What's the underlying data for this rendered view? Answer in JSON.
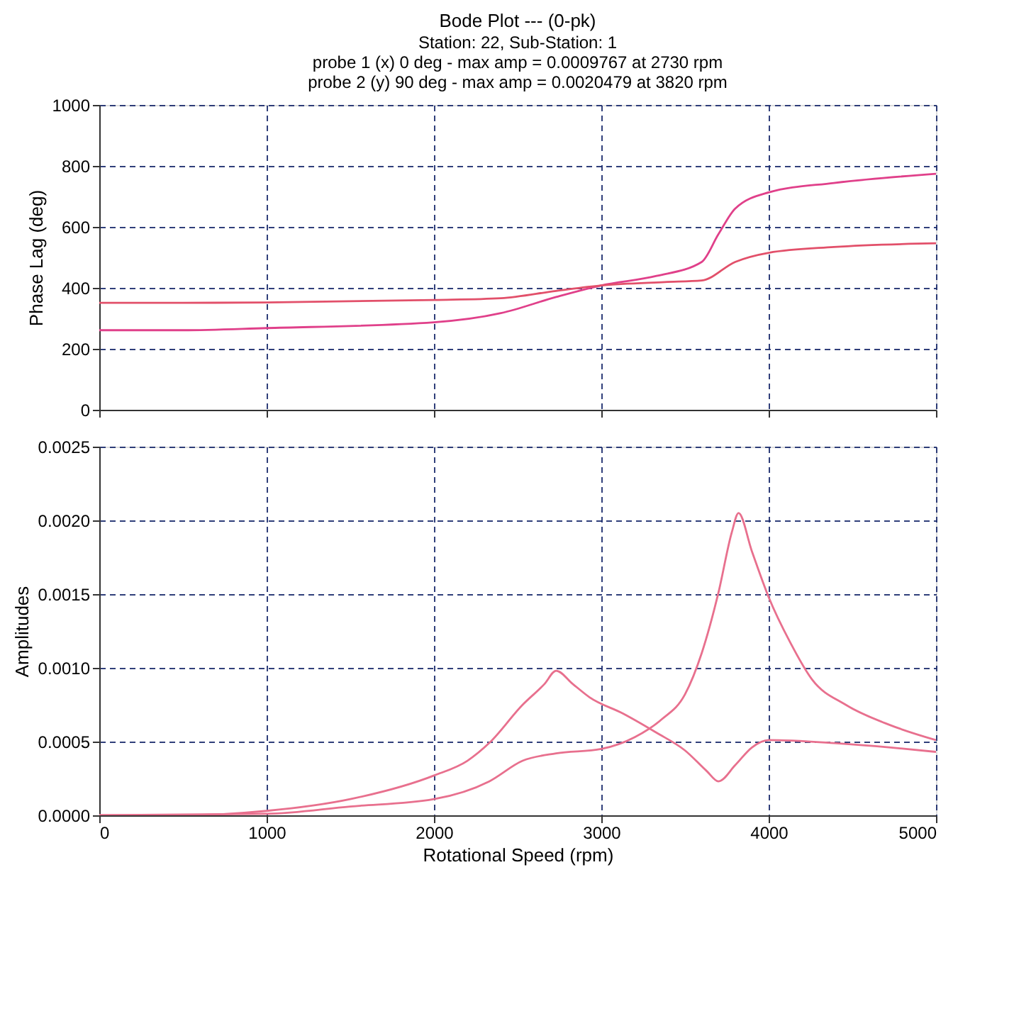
{
  "chart_data": [
    {
      "type": "line",
      "title": "Bode Plot --- (0-pk)",
      "subtitle": "Station: 22, Sub-Station: 1",
      "annotations": [
        "probe 1 (x)  0 deg - max amp = 0.0009767  at 2730 rpm",
        "probe 2 (y)  90 deg - max amp = 0.0020479  at 3820 rpm"
      ],
      "ylabel": "Phase Lag (deg)",
      "xlim": [
        0,
        5000
      ],
      "xticks": [
        0,
        1000,
        2000,
        3000,
        4000,
        5000
      ],
      "ylim": [
        0,
        1000
      ],
      "yticks": [
        0,
        200,
        400,
        600,
        800,
        1000
      ],
      "grid": true,
      "tick_labels": "y",
      "line_style": "solid",
      "series": [
        {
          "color": "#e0408a",
          "x": [
            0,
            500,
            1000,
            2000,
            2400,
            2730,
            3000,
            3330,
            3600,
            3700,
            3800,
            4000,
            4390,
            5000
          ],
          "values": [
            261,
            261,
            268,
            287,
            317,
            370,
            408,
            439,
            485,
            576,
            660,
            713,
            744,
            774
          ]
        },
        {
          "color": "#e2506a",
          "x": [
            0,
            500,
            1000,
            2000,
            2400,
            2730,
            3000,
            3380,
            3600,
            3800,
            4000,
            4390,
            5000
          ],
          "values": [
            351,
            351,
            352,
            360,
            366,
            390,
            408,
            419,
            424,
            485,
            515,
            534,
            546
          ]
        }
      ]
    },
    {
      "type": "line",
      "xlabel": "Rotational Speed (rpm)",
      "ylabel": "Amplitudes",
      "xlim": [
        0,
        5000
      ],
      "xticks": [
        0,
        1000,
        2000,
        3000,
        4000,
        5000
      ],
      "ylim": [
        0,
        0.0025
      ],
      "yticks": [
        {
          "value": 0,
          "label": "0.0000"
        },
        {
          "value": 0.0005,
          "label": "0.0005"
        },
        {
          "value": 0.001,
          "label": "0.0010"
        },
        {
          "value": 0.0015,
          "label": "0.0015"
        },
        {
          "value": 0.002,
          "label": "0.0020"
        },
        {
          "value": 0.0025,
          "label": "0.0025"
        }
      ],
      "grid": true,
      "line_style": "solid",
      "series": [
        {
          "color": "#e8708e",
          "x": [
            0,
            500,
            1000,
            1500,
            2000,
            2200,
            2330,
            2530,
            2660,
            2730,
            2830,
            2930,
            3130,
            3330,
            3500,
            3630,
            3700,
            3800,
            3900,
            4000,
            4390,
            4730,
            5000
          ],
          "values": [
            0,
            0,
            3e-05,
            0.00011,
            0.00027,
            0.00037,
            0.00049,
            0.00075,
            0.00089,
            0.00098,
            0.00089,
            0.0008,
            0.00069,
            0.00056,
            0.00044,
            0.0003,
            0.00023,
            0.00034,
            0.00046,
            0.00051,
            0.00049,
            0.00046,
            0.00043
          ]
        },
        {
          "color": "#e8708e",
          "x": [
            0,
            1000,
            1500,
            2000,
            2330,
            2530,
            2730,
            3000,
            3200,
            3360,
            3500,
            3600,
            3700,
            3780,
            3820,
            3900,
            4000,
            4130,
            4260,
            4460,
            4730,
            5000
          ],
          "values": [
            0,
            1e-05,
            6e-05,
            0.00011,
            0.00023,
            0.00037,
            0.00042,
            0.00045,
            0.00053,
            0.00065,
            0.00082,
            0.0011,
            0.00151,
            0.00192,
            0.00205,
            0.00179,
            0.00148,
            0.00117,
            0.00092,
            0.00075,
            0.00061,
            0.00051
          ]
        }
      ]
    }
  ]
}
